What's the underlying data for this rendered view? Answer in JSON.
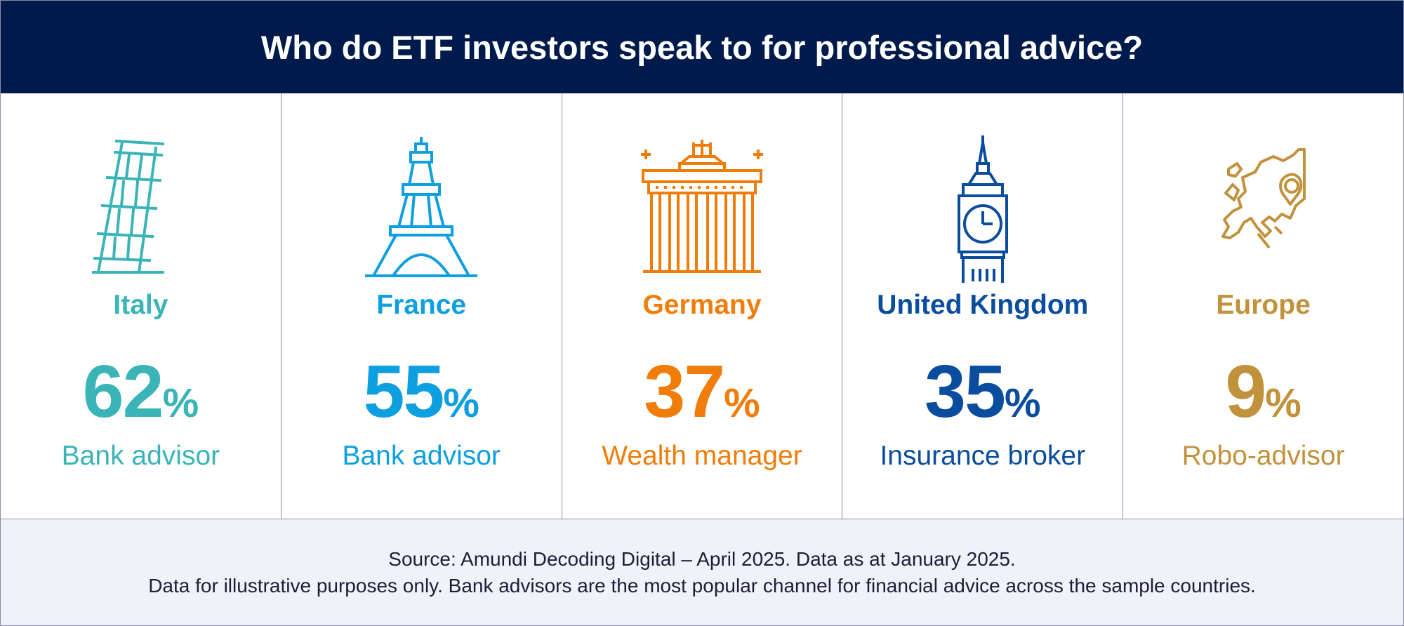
{
  "title": "Who do ETF investors speak to for professional advice?",
  "colors": {
    "header_bg": "#001b4b",
    "italy": "#3bb4b8",
    "france": "#0d9fe0",
    "germany": "#f07d0a",
    "uk": "#0a4d9e",
    "europe": "#c1923b"
  },
  "panels": [
    {
      "country": "Italy",
      "value": "62",
      "unit": "%",
      "channel": "Bank advisor",
      "icon": "leaning-tower-of-pisa-icon"
    },
    {
      "country": "France",
      "value": "55",
      "unit": "%",
      "channel": "Bank advisor",
      "icon": "eiffel-tower-icon"
    },
    {
      "country": "Germany",
      "value": "37",
      "unit": "%",
      "channel": "Wealth manager",
      "icon": "brandenburg-gate-icon"
    },
    {
      "country": "United Kingdom",
      "value": "35",
      "unit": "%",
      "channel": "Insurance broker",
      "icon": "big-ben-icon"
    },
    {
      "country": "Europe",
      "value": "9",
      "unit": "%",
      "channel": "Robo-advisor",
      "icon": "europe-map-pin-icon"
    }
  ],
  "footer": {
    "line1": "Source: Amundi Decoding Digital – April 2025. Data as at January 2025.",
    "line2": "Data for illustrative purposes only. Bank advisors are the most popular channel for financial advice across the sample countries."
  }
}
